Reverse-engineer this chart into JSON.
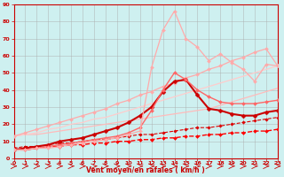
{
  "xlabel": "Vent moyen/en rafales ( km/h )",
  "xlim": [
    0,
    23
  ],
  "ylim": [
    0,
    90
  ],
  "yticks": [
    0,
    10,
    20,
    30,
    40,
    50,
    60,
    70,
    80,
    90
  ],
  "xticks": [
    0,
    1,
    2,
    3,
    4,
    5,
    6,
    7,
    8,
    9,
    10,
    11,
    12,
    13,
    14,
    15,
    16,
    17,
    18,
    19,
    20,
    21,
    22,
    23
  ],
  "background_color": "#cef0f0",
  "grid_color": "#aaaaaa",
  "lines": [
    {
      "x": [
        0,
        1,
        2,
        3,
        4,
        5,
        6,
        7,
        8,
        9,
        10,
        11,
        12,
        13,
        14,
        15,
        16,
        17,
        18,
        19,
        20,
        21,
        22,
        23
      ],
      "y": [
        5,
        5,
        6,
        7,
        7,
        8,
        8,
        9,
        9,
        10,
        10,
        11,
        11,
        12,
        12,
        13,
        13,
        14,
        14,
        15,
        15,
        16,
        16,
        17
      ],
      "color": "#ff0000",
      "linewidth": 1.0,
      "marker": "D",
      "markersize": 2.0,
      "linestyle": "--"
    },
    {
      "x": [
        0,
        1,
        2,
        3,
        4,
        5,
        6,
        7,
        8,
        9,
        10,
        11,
        12,
        13,
        14,
        15,
        16,
        17,
        18,
        19,
        20,
        21,
        22,
        23
      ],
      "y": [
        6,
        7,
        7,
        8,
        9,
        9,
        10,
        11,
        11,
        12,
        13,
        14,
        14,
        15,
        16,
        17,
        18,
        18,
        19,
        20,
        21,
        22,
        23,
        24
      ],
      "color": "#dd0000",
      "linewidth": 0.8,
      "marker": "D",
      "markersize": 1.8,
      "linestyle": "--"
    },
    {
      "x": [
        0,
        1,
        2,
        3,
        4,
        5,
        6,
        7,
        8,
        9,
        10,
        11,
        12,
        13,
        14,
        15,
        16,
        17,
        18,
        19,
        20,
        21,
        22,
        23
      ],
      "y": [
        13,
        14,
        14,
        15,
        16,
        17,
        18,
        19,
        20,
        21,
        22,
        23,
        24,
        25,
        26,
        27,
        28,
        29,
        31,
        33,
        35,
        37,
        39,
        41
      ],
      "color": "#ffbbbb",
      "linewidth": 0.9,
      "marker": null,
      "markersize": 0,
      "linestyle": "-"
    },
    {
      "x": [
        0,
        1,
        2,
        3,
        4,
        5,
        6,
        7,
        8,
        9,
        10,
        11,
        12,
        13,
        14,
        15,
        16,
        17,
        18,
        19,
        20,
        21,
        22,
        23
      ],
      "y": [
        13,
        14,
        15,
        17,
        18,
        20,
        21,
        23,
        24,
        26,
        28,
        30,
        32,
        34,
        36,
        38,
        40,
        42,
        44,
        46,
        48,
        50,
        52,
        54
      ],
      "color": "#ffcccc",
      "linewidth": 0.9,
      "marker": null,
      "markersize": 0,
      "linestyle": "-"
    },
    {
      "x": [
        0,
        1,
        2,
        3,
        4,
        5,
        6,
        7,
        8,
        9,
        10,
        11,
        12,
        13,
        14,
        15,
        16,
        17,
        18,
        19,
        20,
        21,
        22,
        23
      ],
      "y": [
        13,
        15,
        17,
        19,
        21,
        23,
        25,
        27,
        29,
        32,
        34,
        37,
        39,
        42,
        44,
        47,
        49,
        52,
        54,
        57,
        59,
        62,
        64,
        54
      ],
      "color": "#ffaaaa",
      "linewidth": 0.9,
      "marker": "D",
      "markersize": 2.0,
      "linestyle": "-"
    },
    {
      "x": [
        0,
        1,
        2,
        3,
        4,
        5,
        6,
        7,
        8,
        9,
        10,
        11,
        12,
        13,
        14,
        15,
        16,
        17,
        18,
        19,
        20,
        21,
        22,
        23
      ],
      "y": [
        5,
        6,
        7,
        8,
        10,
        11,
        12,
        14,
        16,
        18,
        21,
        25,
        30,
        39,
        45,
        46,
        37,
        29,
        28,
        26,
        25,
        25,
        27,
        28
      ],
      "color": "#cc0000",
      "linewidth": 1.5,
      "marker": "D",
      "markersize": 2.5,
      "linestyle": "-"
    },
    {
      "x": [
        0,
        1,
        2,
        3,
        4,
        5,
        6,
        7,
        8,
        9,
        10,
        11,
        12,
        13,
        14,
        15,
        16,
        17,
        18,
        19,
        20,
        21,
        22,
        23
      ],
      "y": [
        5,
        5,
        6,
        7,
        8,
        9,
        10,
        11,
        12,
        13,
        15,
        18,
        28,
        40,
        50,
        46,
        40,
        36,
        33,
        32,
        32,
        32,
        33,
        34
      ],
      "color": "#ff6666",
      "linewidth": 1.0,
      "marker": "D",
      "markersize": 2.0,
      "linestyle": "-"
    },
    {
      "x": [
        0,
        1,
        2,
        3,
        4,
        5,
        6,
        7,
        8,
        9,
        10,
        11,
        12,
        13,
        14,
        15,
        16,
        17,
        18,
        19,
        20,
        21,
        22,
        23
      ],
      "y": [
        5,
        5,
        6,
        6,
        7,
        8,
        9,
        10,
        11,
        12,
        14,
        16,
        53,
        75,
        86,
        70,
        65,
        57,
        61,
        56,
        52,
        45,
        55,
        54
      ],
      "color": "#ffaaaa",
      "linewidth": 0.9,
      "marker": "D",
      "markersize": 2.0,
      "linestyle": "-"
    }
  ]
}
